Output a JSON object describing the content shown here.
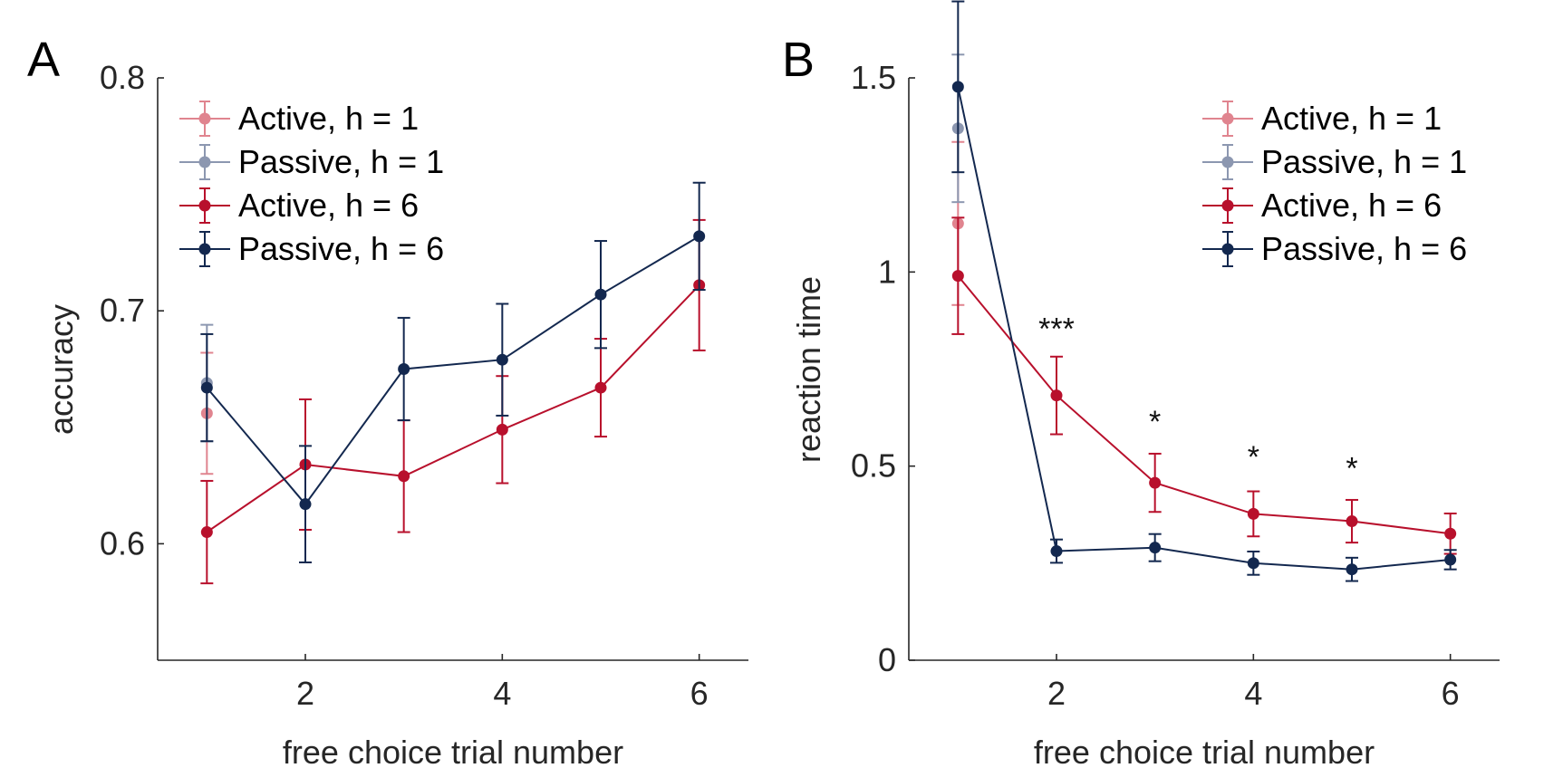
{
  "chart_data": [
    {
      "panel": "A",
      "type": "line",
      "xlabel": "free choice trial number",
      "ylabel": "accuracy",
      "xlim": [
        0.5,
        6.5
      ],
      "ylim": [
        0.55,
        0.8
      ],
      "xticks": [
        2,
        4,
        6
      ],
      "yticks": [
        0.6,
        0.7,
        0.8
      ],
      "xtick_labels": [
        "2",
        "4",
        "6"
      ],
      "ytick_labels": [
        "0.6",
        "0.7",
        "0.8"
      ],
      "legend": {
        "placement": "top-left"
      },
      "series": [
        {
          "name": "Active, h = 1",
          "color": "#e0848f",
          "points": [
            {
              "x": 1,
              "y": 0.656,
              "err": 0.026
            }
          ]
        },
        {
          "name": "Passive, h = 1",
          "color": "#8c97b0",
          "points": [
            {
              "x": 1,
              "y": 0.669,
              "err": 0.025
            }
          ]
        },
        {
          "name": "Active, h = 6",
          "color": "#b8102c",
          "points": [
            {
              "x": 1,
              "y": 0.605,
              "err": 0.022
            },
            {
              "x": 2,
              "y": 0.634,
              "err": 0.028
            },
            {
              "x": 3,
              "y": 0.629,
              "err": 0.024
            },
            {
              "x": 4,
              "y": 0.649,
              "err": 0.023
            },
            {
              "x": 5,
              "y": 0.667,
              "err": 0.021
            },
            {
              "x": 6,
              "y": 0.711,
              "err": 0.028
            }
          ]
        },
        {
          "name": "Passive, h = 6",
          "color": "#13284f",
          "points": [
            {
              "x": 1,
              "y": 0.667,
              "err": 0.023
            },
            {
              "x": 2,
              "y": 0.617,
              "err": 0.025
            },
            {
              "x": 3,
              "y": 0.675,
              "err": 0.022
            },
            {
              "x": 4,
              "y": 0.679,
              "err": 0.024
            },
            {
              "x": 5,
              "y": 0.707,
              "err": 0.023
            },
            {
              "x": 6,
              "y": 0.732,
              "err": 0.023
            }
          ]
        }
      ],
      "annotations": []
    },
    {
      "panel": "B",
      "type": "line",
      "xlabel": "free choice trial number",
      "ylabel": "reaction time",
      "xlim": [
        0.5,
        6.5
      ],
      "ylim": [
        0,
        1.5
      ],
      "xticks": [
        2,
        4,
        6
      ],
      "yticks": [
        0,
        0.5,
        1,
        1.5
      ],
      "xtick_labels": [
        "2",
        "4",
        "6"
      ],
      "ytick_labels": [
        "0",
        "0.5",
        "1",
        "1.5"
      ],
      "legend": {
        "placement": "top-right"
      },
      "series": [
        {
          "name": "Active, h = 1",
          "color": "#e0848f",
          "points": [
            {
              "x": 1,
              "y": 1.125,
              "err": 0.21
            }
          ]
        },
        {
          "name": "Passive, h = 1",
          "color": "#8c97b0",
          "points": [
            {
              "x": 1,
              "y": 1.37,
              "err": 0.19
            }
          ]
        },
        {
          "name": "Active, h = 6",
          "color": "#b8102c",
          "points": [
            {
              "x": 1,
              "y": 0.99,
              "err": 0.15
            },
            {
              "x": 2,
              "y": 0.682,
              "err": 0.1
            },
            {
              "x": 3,
              "y": 0.457,
              "err": 0.075
            },
            {
              "x": 4,
              "y": 0.377,
              "err": 0.058
            },
            {
              "x": 5,
              "y": 0.358,
              "err": 0.055
            },
            {
              "x": 6,
              "y": 0.326,
              "err": 0.052
            }
          ]
        },
        {
          "name": "Passive, h = 6",
          "color": "#13284f",
          "points": [
            {
              "x": 1,
              "y": 1.477,
              "err": 0.22
            },
            {
              "x": 2,
              "y": 0.281,
              "err": 0.03
            },
            {
              "x": 3,
              "y": 0.29,
              "err": 0.035
            },
            {
              "x": 4,
              "y": 0.25,
              "err": 0.03
            },
            {
              "x": 5,
              "y": 0.234,
              "err": 0.03
            },
            {
              "x": 6,
              "y": 0.259,
              "err": 0.025
            }
          ]
        }
      ],
      "annotations": [
        {
          "x": 2,
          "y": 0.86,
          "text": "***"
        },
        {
          "x": 3,
          "y": 0.62,
          "text": "*"
        },
        {
          "x": 4,
          "y": 0.53,
          "text": "*"
        },
        {
          "x": 5,
          "y": 0.5,
          "text": "*"
        }
      ]
    }
  ]
}
